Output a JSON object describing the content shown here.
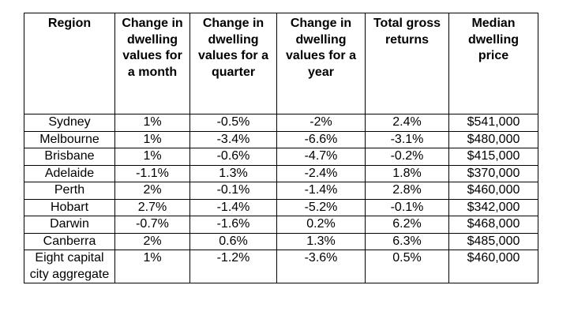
{
  "table": {
    "headers": [
      "Region",
      "Change in dwelling values for a month",
      "Change in dwelling values for a quarter",
      "Change in dwelling values for a year",
      "Total gross returns",
      "Median dwelling price"
    ],
    "rows": [
      [
        "Sydney",
        "1%",
        "-0.5%",
        "-2%",
        "2.4%",
        "$541,000"
      ],
      [
        "Melbourne",
        "1%",
        "-3.4%",
        "-6.6%",
        "-3.1%",
        "$480,000"
      ],
      [
        "Brisbane",
        "1%",
        "-0.6%",
        "-4.7%",
        "-0.2%",
        "$415,000"
      ],
      [
        "Adelaide",
        "-1.1%",
        "1.3%",
        "-2.4%",
        "1.8%",
        "$370,000"
      ],
      [
        "Perth",
        "2%",
        "-0.1%",
        "-1.4%",
        "2.8%",
        "$460,000"
      ],
      [
        "Hobart",
        "2.7%",
        "-1.4%",
        "-5.2%",
        "-0.1%",
        "$342,000"
      ],
      [
        "Darwin",
        "-0.7%",
        "-1.6%",
        "0.2%",
        "6.2%",
        "$468,000"
      ],
      [
        "Canberra",
        "2%",
        "0.6%",
        "1.3%",
        "6.3%",
        "$485,000"
      ],
      [
        "Eight capital city aggregate",
        "1%",
        "-1.2%",
        "-3.6%",
        "0.5%",
        "$460,000"
      ]
    ]
  }
}
